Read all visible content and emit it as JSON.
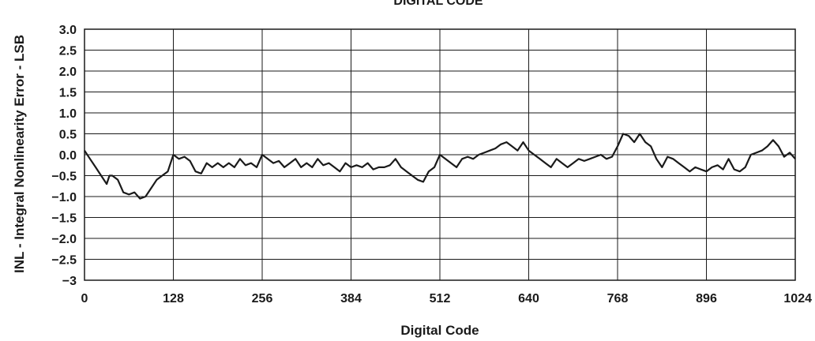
{
  "chart_data": {
    "type": "line",
    "title": "DIGITAL CODE",
    "xlabel": "Digital Code",
    "ylabel": "INL - Integral Nonlinearity Error - LSB",
    "xlim": [
      0,
      1024
    ],
    "ylim": [
      -3,
      3
    ],
    "x_ticks": [
      "0",
      "128",
      "256",
      "384",
      "512",
      "640",
      "768",
      "896",
      "1024"
    ],
    "y_ticks": [
      "3.0",
      "2.5",
      "2.0",
      "1.5",
      "1.0",
      "0.5",
      "0.0",
      "−0.5",
      "−1.0",
      "−1.5",
      "−2.0",
      "−2.5",
      "−3"
    ],
    "grid": true,
    "series": [
      {
        "x": [
          0,
          8,
          16,
          24,
          32,
          36,
          40,
          48,
          56,
          64,
          72,
          80,
          88,
          96,
          104,
          112,
          120,
          128,
          136,
          144,
          152,
          160,
          168,
          176,
          184,
          192,
          200,
          208,
          216,
          224,
          232,
          240,
          248,
          256,
          264,
          272,
          280,
          288,
          296,
          304,
          312,
          320,
          328,
          336,
          344,
          352,
          360,
          368,
          376,
          384,
          392,
          400,
          408,
          416,
          424,
          432,
          440,
          448,
          456,
          464,
          472,
          480,
          488,
          496,
          504,
          512,
          520,
          528,
          536,
          544,
          552,
          560,
          568,
          576,
          584,
          592,
          600,
          608,
          616,
          624,
          632,
          640,
          648,
          656,
          664,
          672,
          680,
          688,
          696,
          704,
          712,
          720,
          728,
          736,
          744,
          752,
          760,
          768,
          776,
          784,
          792,
          800,
          808,
          816,
          824,
          832,
          840,
          848,
          856,
          864,
          872,
          880,
          888,
          896,
          904,
          912,
          920,
          928,
          936,
          944,
          952,
          960,
          968,
          976,
          984,
          992,
          1000,
          1008,
          1016,
          1024
        ],
        "values": [
          0.1,
          -0.1,
          -0.3,
          -0.5,
          -0.7,
          -0.5,
          -0.5,
          -0.6,
          -0.9,
          -0.95,
          -0.9,
          -1.05,
          -1.0,
          -0.8,
          -0.6,
          -0.5,
          -0.4,
          0.0,
          -0.1,
          -0.05,
          -0.15,
          -0.4,
          -0.45,
          -0.2,
          -0.3,
          -0.2,
          -0.3,
          -0.2,
          -0.3,
          -0.1,
          -0.25,
          -0.2,
          -0.3,
          0.0,
          -0.1,
          -0.2,
          -0.15,
          -0.3,
          -0.2,
          -0.1,
          -0.3,
          -0.2,
          -0.3,
          -0.1,
          -0.25,
          -0.2,
          -0.3,
          -0.4,
          -0.2,
          -0.3,
          -0.25,
          -0.3,
          -0.2,
          -0.35,
          -0.3,
          -0.3,
          -0.25,
          -0.1,
          -0.3,
          -0.4,
          -0.5,
          -0.6,
          -0.65,
          -0.4,
          -0.3,
          0.0,
          -0.1,
          -0.2,
          -0.3,
          -0.1,
          -0.05,
          -0.1,
          0.0,
          0.05,
          0.1,
          0.15,
          0.25,
          0.3,
          0.2,
          0.1,
          0.3,
          0.1,
          0.0,
          -0.1,
          -0.2,
          -0.3,
          -0.1,
          -0.2,
          -0.3,
          -0.2,
          -0.1,
          -0.15,
          -0.1,
          -0.05,
          0.0,
          -0.1,
          -0.05,
          0.2,
          0.5,
          0.45,
          0.3,
          0.5,
          0.3,
          0.2,
          -0.1,
          -0.3,
          -0.05,
          -0.1,
          -0.2,
          -0.3,
          -0.4,
          -0.3,
          -0.35,
          -0.4,
          -0.3,
          -0.25,
          -0.35,
          -0.1,
          -0.35,
          -0.4,
          -0.3,
          0.0,
          0.05,
          0.1,
          0.2,
          0.35,
          0.2,
          -0.05,
          0.05,
          -0.1
        ]
      }
    ]
  }
}
